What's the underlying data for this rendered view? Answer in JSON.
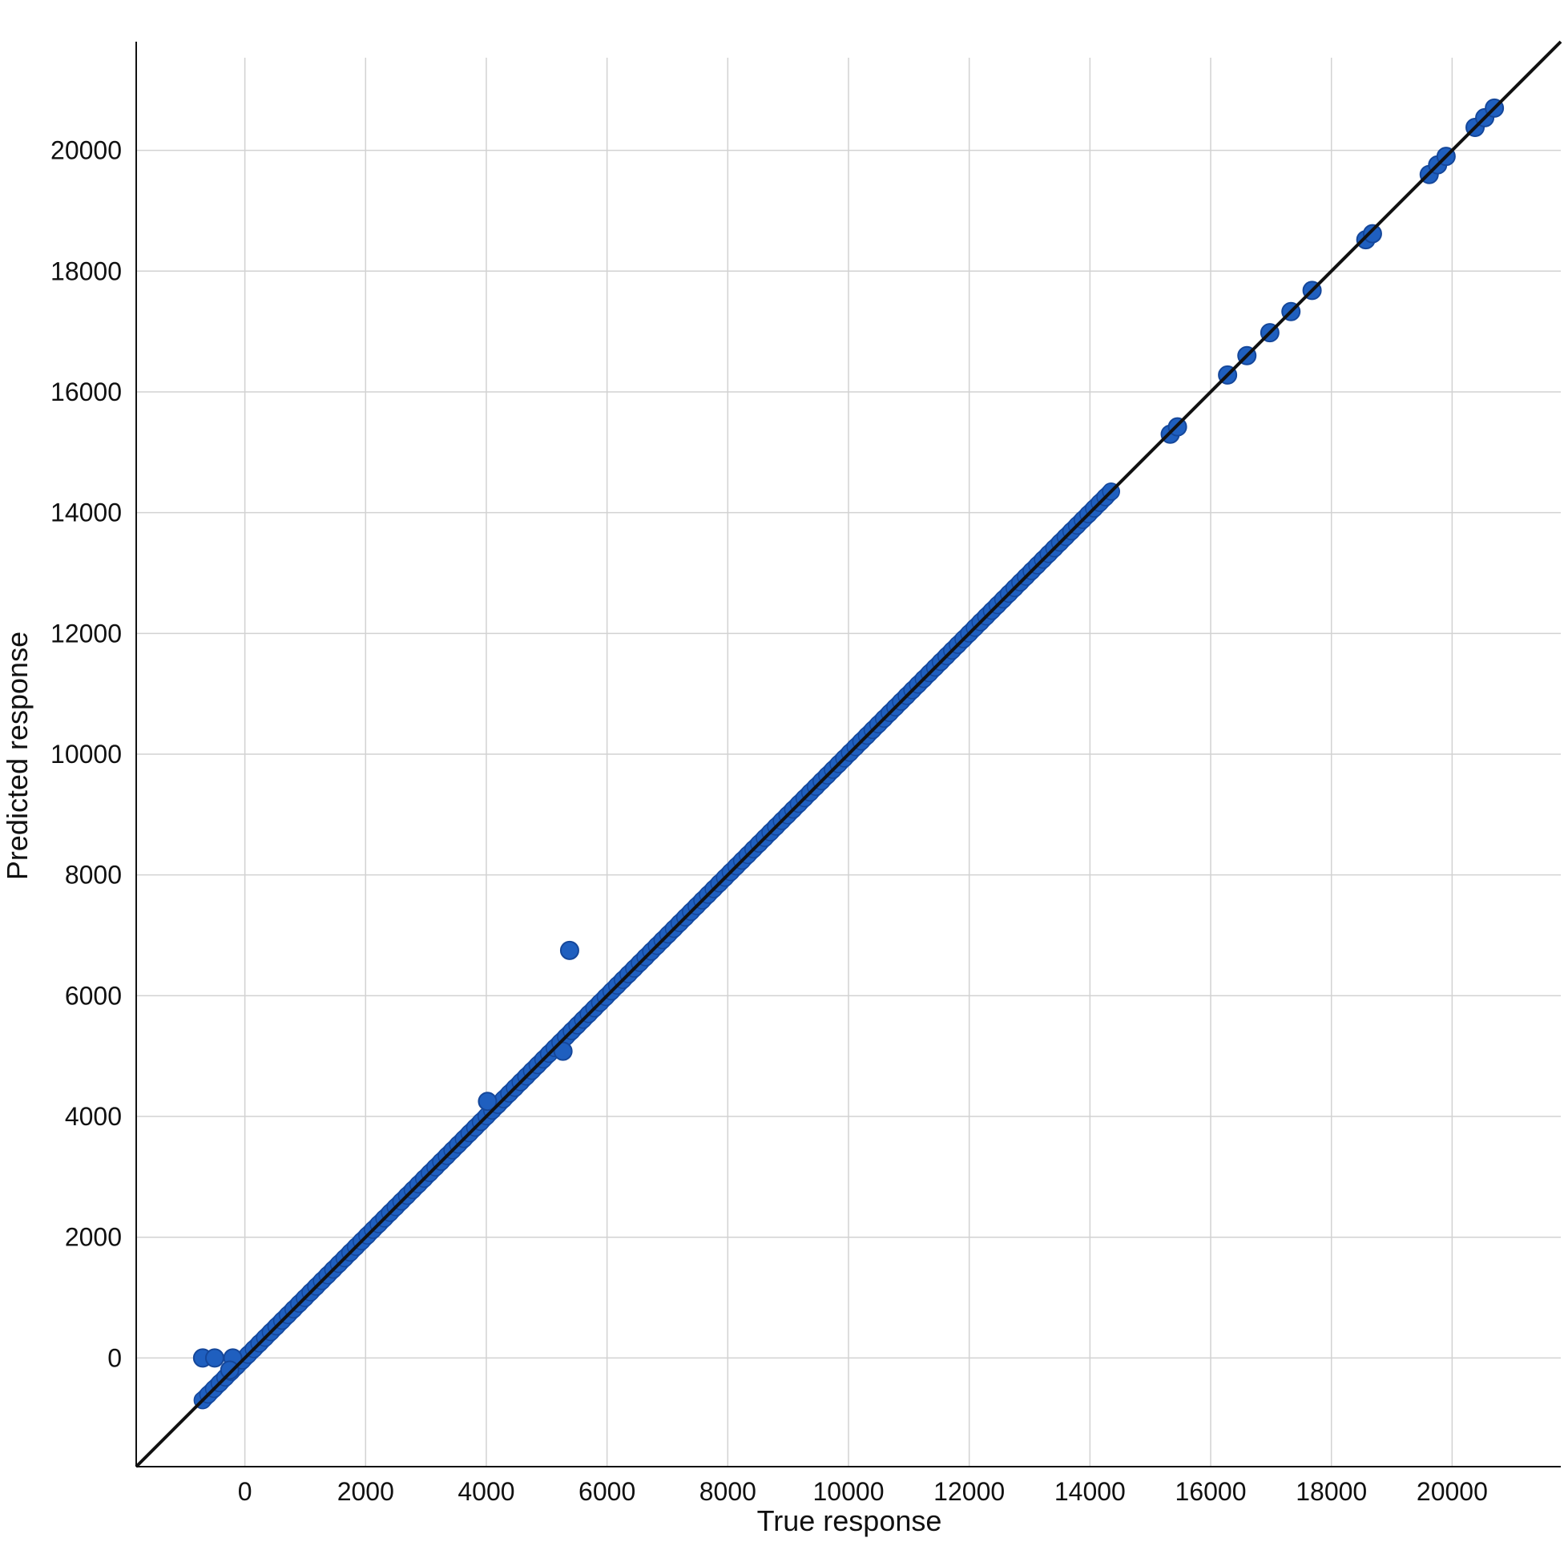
{
  "chart_data": {
    "type": "scatter",
    "title": "",
    "xlabel": "True response",
    "ylabel": "Predicted response",
    "xlim": [
      -1800,
      21800
    ],
    "ylim": [
      -1800,
      21800
    ],
    "grid": true,
    "legend": "none",
    "x_ticks": [
      0,
      2000,
      4000,
      6000,
      8000,
      10000,
      12000,
      14000,
      16000,
      18000,
      20000
    ],
    "y_ticks": [
      0,
      2000,
      4000,
      6000,
      8000,
      10000,
      12000,
      14000,
      16000,
      18000,
      20000
    ],
    "x_tick_labels": [
      "0",
      "2000",
      "4000",
      "6000",
      "8000",
      "10000",
      "12000",
      "14000",
      "16000",
      "18000",
      "20000"
    ],
    "y_tick_labels": [
      "0",
      "2000",
      "4000",
      "6000",
      "8000",
      "10000",
      "12000",
      "14000",
      "16000",
      "18000",
      "20000"
    ],
    "reference_line": {
      "from": [
        -1800,
        -1800
      ],
      "to": [
        21800,
        21800
      ],
      "color": "#111111"
    },
    "series": [
      {
        "color": "#1f5fbf",
        "dense_band": {
          "from": [
            -700,
            -700
          ],
          "to": [
            14350,
            14350
          ]
        },
        "points": [
          [
            -700,
            0
          ],
          [
            -500,
            0
          ],
          [
            -200,
            0
          ],
          [
            -250,
            -200
          ],
          [
            5380,
            6750
          ],
          [
            4020,
            4250
          ],
          [
            5270,
            5080
          ],
          [
            15330,
            15300
          ],
          [
            15450,
            15420
          ],
          [
            16280,
            16280
          ],
          [
            16600,
            16600
          ],
          [
            16980,
            16980
          ],
          [
            17330,
            17330
          ],
          [
            17680,
            17680
          ],
          [
            18570,
            18520
          ],
          [
            18680,
            18620
          ],
          [
            19620,
            19600
          ],
          [
            19760,
            19760
          ],
          [
            19900,
            19900
          ],
          [
            20380,
            20380
          ],
          [
            20540,
            20540
          ],
          [
            20700,
            20700
          ]
        ]
      }
    ]
  },
  "colors": {
    "point": "#1f5fbf",
    "point_edge": "#15479a",
    "grid": "#d2d2d2",
    "axis": "#111111"
  }
}
